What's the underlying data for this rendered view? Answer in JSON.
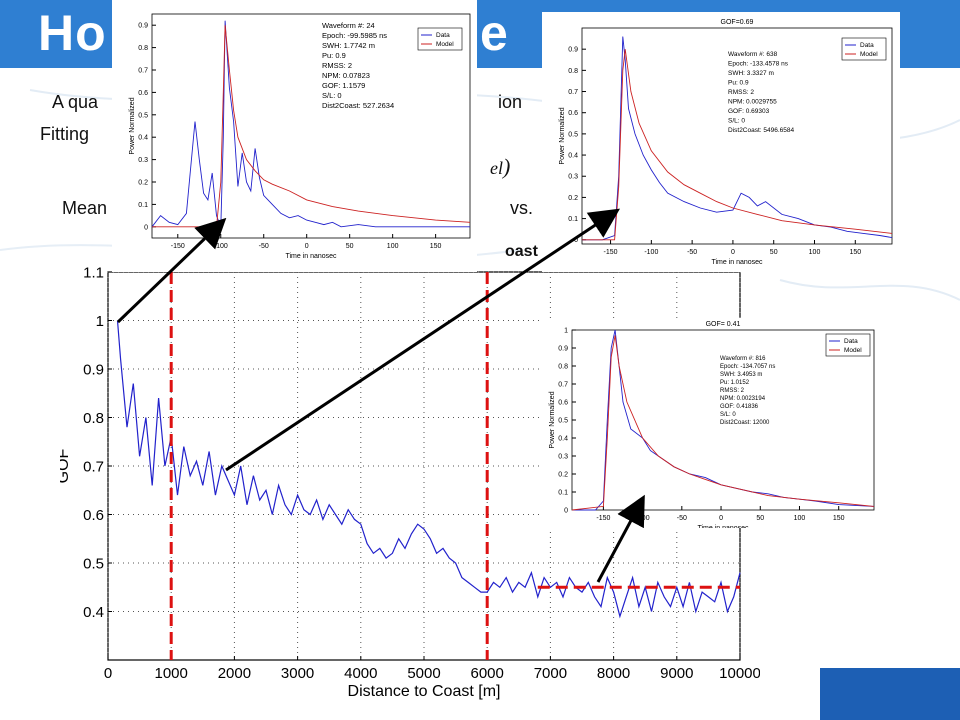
{
  "slide": {
    "title_left": "Ho",
    "title_right": "e",
    "line1_left": "A qua",
    "line1_right": "ion",
    "line2_left": "Fitting",
    "line3_left": "Mean",
    "line3_right": "vs.",
    "formula_fragment": "el",
    "partial_label": "oast"
  },
  "colors": {
    "banner": "#2f7fd2",
    "data_line": "#2222cc",
    "model_line": "#cc2222",
    "threshold": "#dd1111",
    "footer": "#1d5fb4"
  },
  "chart_data": [
    {
      "id": "main",
      "type": "line",
      "xlabel": "Distance to Coast [m]",
      "ylabel": "GOF",
      "xlim": [
        0,
        10000
      ],
      "ylim": [
        0.3,
        1.1
      ],
      "xticks": [
        "0",
        "1000",
        "2000",
        "3000",
        "4000",
        "5000",
        "6000",
        "7000",
        "8000",
        "9000",
        "10000"
      ],
      "yticks": [
        "0.4",
        "0.5",
        "0.6",
        "0.7",
        "0.8",
        "0.9",
        "1",
        "1.1"
      ],
      "grid": true,
      "series": [
        {
          "x": [
            150,
            200,
            300,
            400,
            500,
            600,
            700,
            800,
            900,
            1000,
            1100,
            1200,
            1300,
            1400,
            1500,
            1600,
            1700,
            1800,
            1900,
            2000,
            2100,
            2200,
            2300,
            2400,
            2500,
            2600,
            2700,
            2800,
            2900,
            3000,
            3100,
            3200,
            3300,
            3400,
            3500,
            3600,
            3700,
            3800,
            3900,
            4000,
            4100,
            4200,
            4300,
            4400,
            4500,
            4600,
            4700,
            4800,
            4900,
            5000,
            5100,
            5200,
            5300,
            5400,
            5500,
            5600,
            5700,
            5800,
            5900,
            6000,
            6100,
            6200,
            6300,
            6400,
            6500,
            6600,
            6700,
            6800,
            6900,
            7000,
            7100,
            7200,
            7300,
            7400,
            7500,
            7600,
            7700,
            7800,
            7900,
            8000,
            8100,
            8200,
            8300,
            8400,
            8500,
            8600,
            8700,
            8800,
            8900,
            9000,
            9100,
            9200,
            9300,
            9400,
            9500,
            9600,
            9700,
            9800,
            9900,
            10000
          ],
          "y": [
            1.0,
            0.92,
            0.78,
            0.87,
            0.72,
            0.8,
            0.66,
            0.84,
            0.7,
            0.76,
            0.64,
            0.74,
            0.68,
            0.71,
            0.66,
            0.73,
            0.64,
            0.7,
            0.67,
            0.64,
            0.7,
            0.62,
            0.68,
            0.63,
            0.65,
            0.6,
            0.66,
            0.62,
            0.6,
            0.64,
            0.61,
            0.6,
            0.63,
            0.59,
            0.62,
            0.6,
            0.58,
            0.61,
            0.59,
            0.58,
            0.54,
            0.52,
            0.53,
            0.51,
            0.52,
            0.55,
            0.53,
            0.56,
            0.58,
            0.57,
            0.55,
            0.52,
            0.53,
            0.51,
            0.5,
            0.47,
            0.46,
            0.45,
            0.44,
            0.44,
            0.46,
            0.45,
            0.47,
            0.44,
            0.46,
            0.45,
            0.48,
            0.43,
            0.47,
            0.45,
            0.46,
            0.43,
            0.47,
            0.45,
            0.44,
            0.46,
            0.43,
            0.41,
            0.47,
            0.44,
            0.39,
            0.43,
            0.47,
            0.41,
            0.45,
            0.4,
            0.46,
            0.43,
            0.41,
            0.45,
            0.41,
            0.46,
            0.4,
            0.44,
            0.43,
            0.42,
            0.46,
            0.4,
            0.43,
            0.48
          ]
        }
      ],
      "vlines_x": [
        1000,
        6000
      ],
      "hline": {
        "y": 0.45,
        "x_from": 6800,
        "x_to": 10000
      }
    },
    {
      "id": "inset1",
      "type": "line",
      "xlabel": "Time in nanosec",
      "ylabel": "Power Normalized",
      "xlim": [
        -180,
        190
      ],
      "ylim": [
        -0.05,
        0.95
      ],
      "xticks": [
        "-150",
        "-100",
        "-50",
        "0",
        "50",
        "100",
        "150"
      ],
      "yticks": [
        "0",
        "0.1",
        "0.2",
        "0.3",
        "0.4",
        "0.5",
        "0.6",
        "0.7",
        "0.8",
        "0.9"
      ],
      "legend": [
        "Data",
        "Model"
      ],
      "annotation": [
        "Waveform #: 24",
        "Epoch: -99.5985 ns",
        "SWH: 1.7742 m",
        "Pu: 0.9",
        "RMSS: 2",
        "NPM: 0.07823",
        "GOF: 1.1579",
        "S/L: 0",
        "Dist2Coast: 527.2634"
      ],
      "series": [
        {
          "name": "Data",
          "x": [
            -180,
            -170,
            -160,
            -150,
            -140,
            -130,
            -125,
            -120,
            -115,
            -110,
            -105,
            -100,
            -97,
            -95,
            -90,
            -85,
            -80,
            -75,
            -70,
            -65,
            -60,
            -55,
            -50,
            -40,
            -30,
            -20,
            -10,
            0,
            10,
            20,
            30,
            40,
            60,
            80,
            100,
            130,
            160,
            190
          ],
          "y": [
            0.0,
            0.05,
            0.02,
            0.01,
            0.06,
            0.47,
            0.3,
            0.15,
            0.12,
            0.24,
            0.05,
            0.0,
            0.4,
            0.92,
            0.62,
            0.47,
            0.18,
            0.33,
            0.2,
            0.16,
            0.35,
            0.22,
            0.14,
            0.1,
            0.06,
            0.04,
            0.05,
            0.03,
            0.02,
            0.01,
            0.02,
            0.0,
            0.01,
            0.0,
            0.0,
            0.0,
            0.0,
            0.0
          ]
        },
        {
          "name": "Model",
          "x": [
            -180,
            -120,
            -105,
            -100,
            -97,
            -95,
            -90,
            -85,
            -80,
            -70,
            -60,
            -50,
            -40,
            -20,
            0,
            30,
            60,
            100,
            150,
            190
          ],
          "y": [
            0,
            0,
            0.0,
            0.2,
            0.6,
            0.9,
            0.7,
            0.52,
            0.4,
            0.3,
            0.25,
            0.21,
            0.19,
            0.16,
            0.12,
            0.09,
            0.07,
            0.05,
            0.03,
            0.02
          ]
        }
      ]
    },
    {
      "id": "inset2",
      "type": "line",
      "title": "GOF=0.69",
      "xlabel": "Time in nanosec",
      "ylabel": "Power Normalized",
      "xlim": [
        -185,
        195
      ],
      "ylim": [
        -0.02,
        1.0
      ],
      "xticks": [
        "-150",
        "-100",
        "-50",
        "0",
        "50",
        "100",
        "150"
      ],
      "yticks": [
        "0",
        "0.1",
        "0.2",
        "0.3",
        "0.4",
        "0.5",
        "0.6",
        "0.7",
        "0.8",
        "0.9"
      ],
      "legend": [
        "Data",
        "Model"
      ],
      "annotation": [
        "Waveform #: 638",
        "Epoch: -133.4578 ns",
        "SWH: 3.3327 m",
        "Pu: 0.9",
        "RMSS: 2",
        "NPM: 0.0029755",
        "GOF: 0.69303",
        "S/L: 0",
        "Dist2Coast: 5496.6584"
      ],
      "series": [
        {
          "name": "Data",
          "x": [
            -185,
            -160,
            -145,
            -140,
            -135,
            -132,
            -128,
            -120,
            -110,
            -100,
            -90,
            -80,
            -60,
            -40,
            -20,
            0,
            10,
            20,
            30,
            40,
            60,
            80,
            100,
            120,
            140,
            160,
            180,
            195
          ],
          "y": [
            0,
            0,
            0.02,
            0.3,
            0.96,
            0.85,
            0.62,
            0.5,
            0.4,
            0.33,
            0.27,
            0.22,
            0.18,
            0.15,
            0.13,
            0.14,
            0.22,
            0.2,
            0.16,
            0.18,
            0.12,
            0.1,
            0.07,
            0.06,
            0.04,
            0.03,
            0.02,
            0.01
          ]
        },
        {
          "name": "Model",
          "x": [
            -185,
            -145,
            -140,
            -135,
            -132,
            -125,
            -115,
            -100,
            -80,
            -60,
            -40,
            -20,
            0,
            30,
            60,
            100,
            150,
            195
          ],
          "y": [
            0,
            0,
            0.25,
            0.8,
            0.9,
            0.7,
            0.55,
            0.42,
            0.32,
            0.26,
            0.22,
            0.18,
            0.15,
            0.12,
            0.09,
            0.07,
            0.05,
            0.03
          ]
        }
      ]
    },
    {
      "id": "inset3",
      "type": "line",
      "title": "GOF= 0.41",
      "xlabel": "Time in nanosec",
      "ylabel": "Power Normalized",
      "xlim": [
        -190,
        195
      ],
      "ylim": [
        0,
        1.0
      ],
      "xticks": [
        "-150",
        "-100",
        "-50",
        "0",
        "50",
        "100",
        "150"
      ],
      "yticks": [
        "0",
        "0.1",
        "0.2",
        "0.3",
        "0.4",
        "0.5",
        "0.6",
        "0.7",
        "0.8",
        "0.9",
        "1"
      ],
      "legend": [
        "Data",
        "Model"
      ],
      "annotation": [
        "Waveform #: 816",
        "Epoch: -134.7057 ns",
        "SWH: 3.4953 m",
        "Pu: 1.0152",
        "RMSS: 2",
        "NPM: 0.0023194",
        "GOF: 0.41836",
        "S/L: 0",
        "Dist2Coast: 12000"
      ],
      "series": [
        {
          "name": "Data",
          "x": [
            -190,
            -160,
            -150,
            -145,
            -140,
            -135,
            -130,
            -125,
            -115,
            -100,
            -90,
            -80,
            -60,
            -40,
            -20,
            0,
            20,
            40,
            60,
            80,
            100,
            120,
            150,
            195
          ],
          "y": [
            0,
            0,
            0.05,
            0.5,
            0.9,
            1.0,
            0.8,
            0.6,
            0.45,
            0.4,
            0.33,
            0.3,
            0.24,
            0.2,
            0.18,
            0.14,
            0.12,
            0.1,
            0.09,
            0.07,
            0.06,
            0.05,
            0.03,
            0.02
          ]
        },
        {
          "name": "Model",
          "x": [
            -190,
            -150,
            -145,
            -140,
            -135,
            -130,
            -120,
            -100,
            -80,
            -60,
            -40,
            -20,
            0,
            30,
            60,
            100,
            150,
            195
          ],
          "y": [
            0,
            0.02,
            0.4,
            0.85,
            0.97,
            0.8,
            0.6,
            0.4,
            0.3,
            0.24,
            0.2,
            0.17,
            0.14,
            0.11,
            0.08,
            0.06,
            0.04,
            0.02
          ]
        }
      ]
    }
  ]
}
